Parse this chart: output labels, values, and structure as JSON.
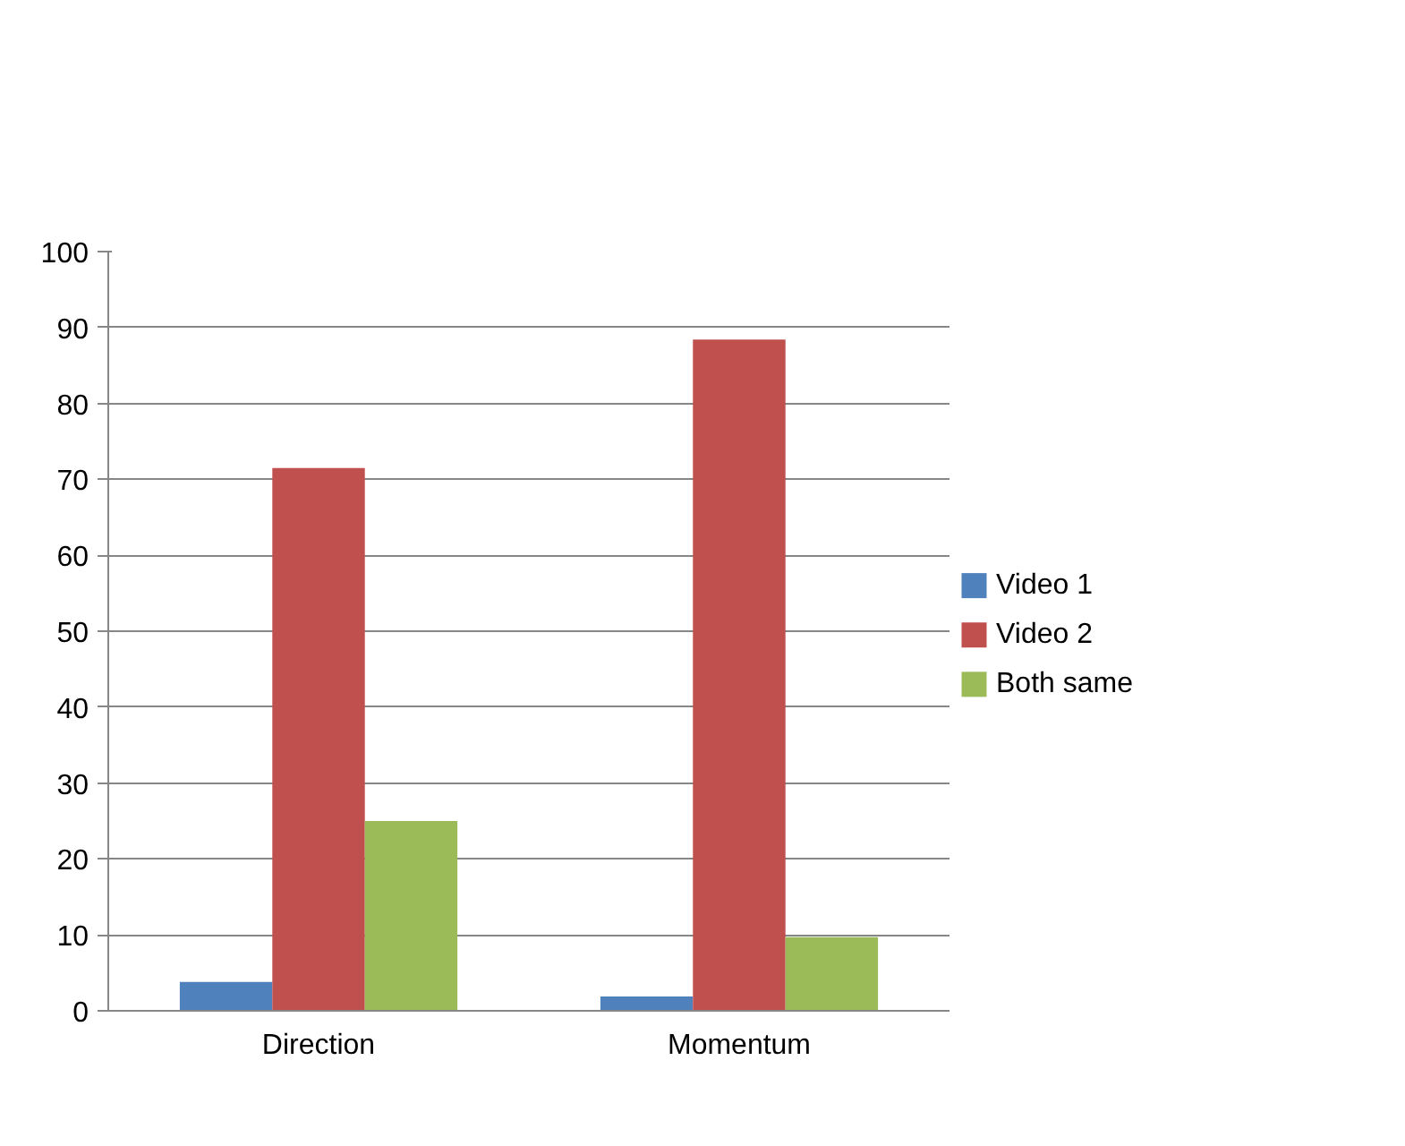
{
  "chart_data": {
    "type": "bar",
    "categories": [
      "Direction",
      "Momentum"
    ],
    "series": [
      {
        "name": "Video 1",
        "color": "#4f81bd",
        "values": [
          3.8,
          1.9
        ]
      },
      {
        "name": "Video 2",
        "color": "#c0504d",
        "values": [
          71.5,
          88.4
        ]
      },
      {
        "name": "Both same",
        "color": "#9bbb59",
        "values": [
          25,
          9.7
        ]
      }
    ],
    "ylim": [
      0,
      100
    ],
    "yticks": [
      0,
      10,
      20,
      30,
      40,
      50,
      60,
      70,
      80,
      90,
      100
    ],
    "grid": "y",
    "legend": "right"
  }
}
